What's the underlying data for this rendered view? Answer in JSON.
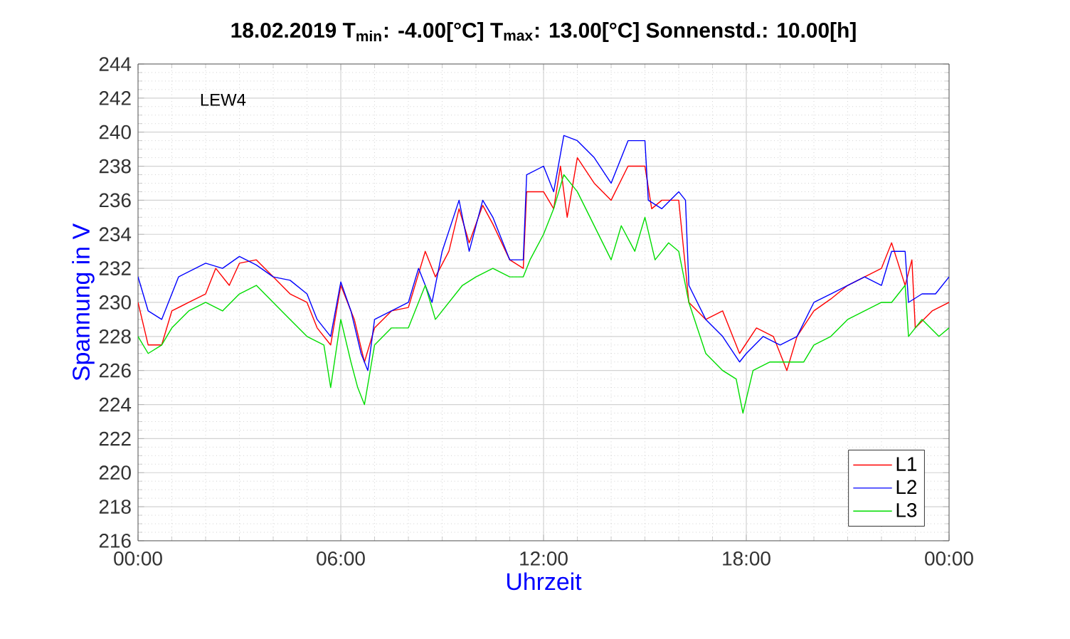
{
  "chart_data": {
    "type": "line",
    "title": "18.02.2019    T$_{min}$: -4.00[°C]    T$_{max}$: 13.00[°C]    Sonnenstd.: 10.00[h]",
    "xlabel": "Uhrzeit",
    "ylabel": "Spannung in V",
    "annotations": [
      "LEW4"
    ],
    "xlim": [
      0,
      24
    ],
    "xticks": [
      {
        "value": 0,
        "label": "00:00"
      },
      {
        "value": 6,
        "label": "06:00"
      },
      {
        "value": 12,
        "label": "12:00"
      },
      {
        "value": 18,
        "label": "18:00"
      },
      {
        "value": 24,
        "label": "00:00"
      }
    ],
    "ylim": [
      216,
      244
    ],
    "yticks": [
      216,
      218,
      220,
      222,
      224,
      226,
      228,
      230,
      232,
      234,
      236,
      238,
      240,
      242,
      244
    ],
    "grid": true,
    "legend": "bottom right",
    "marker": "none",
    "line_style": "solid",
    "series": [
      {
        "name": "L1",
        "color": "#ff0000",
        "x": [
          0,
          0.3,
          0.7,
          1,
          1.5,
          2,
          2.3,
          2.7,
          3,
          3.5,
          4,
          4.5,
          5,
          5.3,
          5.7,
          6,
          6.4,
          6.7,
          7,
          7.5,
          8,
          8.5,
          8.8,
          9.2,
          9.5,
          9.8,
          10.2,
          10.5,
          11,
          11.4,
          11.5,
          12,
          12.3,
          12.5,
          12.7,
          13,
          13.5,
          14,
          14.5,
          15,
          15.2,
          15.5,
          16,
          16.3,
          16.8,
          17.3,
          17.8,
          18.3,
          18.8,
          19.2,
          19.5,
          20,
          20.5,
          21,
          21.5,
          22,
          22.3,
          22.7,
          22.9,
          23,
          23.5,
          24
        ],
        "values": [
          230,
          227.5,
          227.5,
          229.5,
          230,
          230.5,
          232,
          231,
          232.3,
          232.5,
          231.5,
          230.5,
          230,
          228.5,
          227.5,
          231,
          229,
          226.5,
          228.5,
          229.5,
          229.7,
          233,
          231.5,
          233,
          235.5,
          233.5,
          235.7,
          234.6,
          232.5,
          232,
          236.5,
          236.5,
          235.5,
          238,
          235,
          238.5,
          237,
          236,
          238,
          238,
          235.5,
          236,
          236,
          230,
          229,
          229.5,
          227,
          228.5,
          228,
          226,
          228,
          229.5,
          230.2,
          231,
          231.5,
          232,
          233.5,
          231,
          232.5,
          228.5,
          229.5,
          230
        ]
      },
      {
        "name": "L2",
        "color": "#0000ff",
        "x": [
          0,
          0.3,
          0.7,
          1.2,
          2,
          2.5,
          3,
          3.5,
          4,
          4.5,
          5,
          5.3,
          5.7,
          6,
          6.3,
          6.6,
          6.8,
          7,
          7.5,
          8,
          8.3,
          8.7,
          9,
          9.5,
          9.8,
          10.2,
          10.5,
          11,
          11.4,
          11.5,
          12,
          12.3,
          12.6,
          13,
          13.5,
          14,
          14.5,
          15,
          15.1,
          15.5,
          16,
          16.2,
          16.3,
          16.8,
          17.3,
          17.8,
          18,
          18.5,
          19,
          19.5,
          20,
          20.5,
          21,
          21.5,
          22,
          22.3,
          22.7,
          22.8,
          23.2,
          23.6,
          24
        ],
        "values": [
          231.5,
          229.5,
          229,
          231.5,
          232.3,
          232,
          232.7,
          232.2,
          231.5,
          231.3,
          230.5,
          229,
          228,
          231.2,
          229.5,
          227,
          226,
          229,
          229.5,
          230,
          232,
          230,
          233,
          236,
          233,
          236,
          235,
          232.5,
          232.5,
          237.5,
          238,
          236.5,
          239.8,
          239.5,
          238.5,
          237,
          239.5,
          239.5,
          236,
          235.5,
          236.5,
          236,
          231,
          229,
          228,
          226.5,
          227,
          228,
          227.5,
          228,
          230,
          230.5,
          231,
          231.5,
          231,
          233,
          233,
          230,
          230.5,
          230.5,
          231.5
        ]
      },
      {
        "name": "L3",
        "color": "#00dd00",
        "x": [
          0,
          0.3,
          0.7,
          1,
          1.5,
          2,
          2.5,
          3,
          3.5,
          4,
          4.5,
          5,
          5.5,
          5.7,
          6,
          6.3,
          6.5,
          6.7,
          7,
          7.5,
          8,
          8.5,
          8.8,
          9.2,
          9.6,
          10,
          10.5,
          11,
          11.4,
          11.6,
          12,
          12.3,
          12.6,
          13,
          13.5,
          14,
          14.3,
          14.7,
          15,
          15.3,
          15.7,
          16,
          16.3,
          16.8,
          17.3,
          17.7,
          17.9,
          18.2,
          18.7,
          19.3,
          19.7,
          20,
          20.5,
          21,
          21.5,
          22,
          22.3,
          22.7,
          22.8,
          23.2,
          23.7,
          24
        ],
        "values": [
          228,
          227,
          227.5,
          228.5,
          229.5,
          230,
          229.5,
          230.5,
          231,
          230,
          229,
          228,
          227.5,
          225,
          229,
          226.5,
          225,
          224,
          227.5,
          228.5,
          228.5,
          231,
          229,
          230,
          231,
          231.5,
          232,
          231.5,
          231.5,
          232.5,
          234,
          235.5,
          237.5,
          236.5,
          234.5,
          232.5,
          234.5,
          233,
          235,
          232.5,
          233.5,
          233,
          230,
          227,
          226,
          225.5,
          223.5,
          226,
          226.5,
          226.5,
          226.5,
          227.5,
          228,
          229,
          229.5,
          230,
          230,
          231,
          228,
          229,
          228,
          228.5
        ]
      }
    ]
  }
}
